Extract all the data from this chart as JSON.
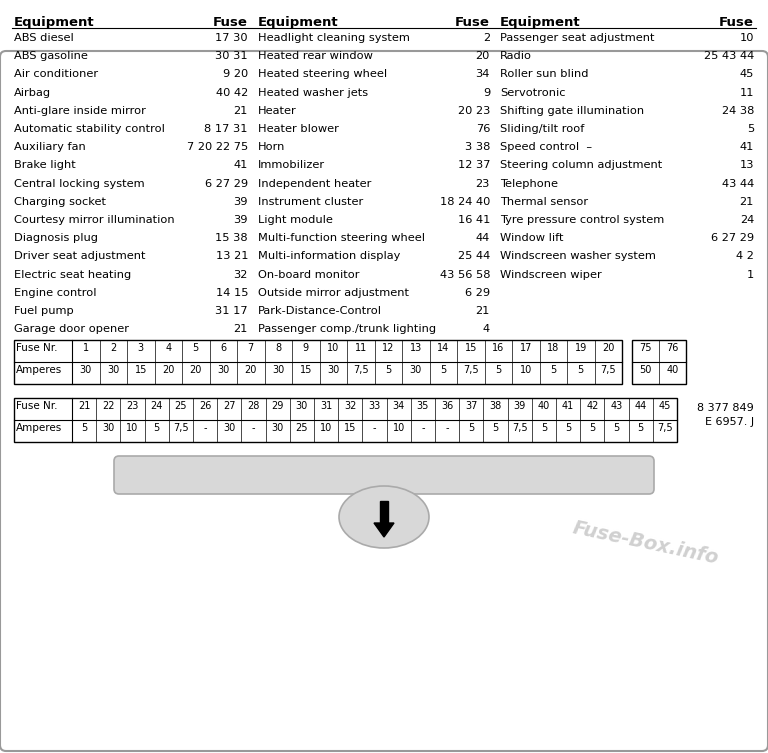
{
  "col1_items": [
    [
      "ABS diesel",
      "17 30"
    ],
    [
      "ABS gasoline",
      "30 31"
    ],
    [
      "Air conditioner",
      "9 20"
    ],
    [
      "Airbag",
      "40 42"
    ],
    [
      "Anti-glare inside mirror",
      "21"
    ],
    [
      "Automatic stability control",
      "8 17 31"
    ],
    [
      "Auxiliary fan",
      "7 20 22 75"
    ],
    [
      "Brake light",
      "41"
    ],
    [
      "Central locking system",
      "6 27 29"
    ],
    [
      "Charging socket",
      "39"
    ],
    [
      "Courtesy mirror illumination",
      "39"
    ],
    [
      "Diagnosis plug",
      "15 38"
    ],
    [
      "Driver seat adjustment",
      "13 21"
    ],
    [
      "Electric seat heating",
      "32"
    ],
    [
      "Engine control",
      "14 15"
    ],
    [
      "Fuel pump",
      "31 17"
    ],
    [
      "Garage door opener",
      "21"
    ]
  ],
  "col2_items": [
    [
      "Headlight cleaning system",
      "2"
    ],
    [
      "Heated rear window",
      "20"
    ],
    [
      "Heated steering wheel",
      "34"
    ],
    [
      "Heated washer jets",
      "9"
    ],
    [
      "Heater",
      "20 23"
    ],
    [
      "Heater blower",
      "76"
    ],
    [
      "Horn",
      "3 38"
    ],
    [
      "Immobilizer",
      "12 37"
    ],
    [
      "Independent heater",
      "23"
    ],
    [
      "Instrument cluster",
      "18 24 40"
    ],
    [
      "Light module",
      "16 41"
    ],
    [
      "Multi-function steering wheel",
      "44"
    ],
    [
      "Multi-information display",
      "25 44"
    ],
    [
      "On-board monitor",
      "43 56 58"
    ],
    [
      "Outside mirror adjustment",
      "6 29"
    ],
    [
      "Park-Distance-Control",
      "21"
    ],
    [
      "Passenger comp./trunk lighting",
      "4"
    ]
  ],
  "col3_items": [
    [
      "Passenger seat adjustment",
      "10"
    ],
    [
      "Radio",
      "25 43 44"
    ],
    [
      "Roller sun blind",
      "45"
    ],
    [
      "Servotronic",
      "11"
    ],
    [
      "Shifting gate illumination",
      "24 38"
    ],
    [
      "Sliding/tilt roof",
      "5"
    ],
    [
      "Speed control  –",
      "41"
    ],
    [
      "Steering column adjustment",
      "13"
    ],
    [
      "Telephone",
      "43 44"
    ],
    [
      "Thermal sensor",
      "21"
    ],
    [
      "Tyre pressure control system",
      "24"
    ],
    [
      "Window lift",
      "6 27 29"
    ],
    [
      "Windscreen washer system",
      "4 2"
    ],
    [
      "Windscreen wiper",
      "1"
    ]
  ],
  "table1_fuse_nr": [
    "1",
    "2",
    "3",
    "4",
    "5",
    "6",
    "7",
    "8",
    "9",
    "10",
    "11",
    "12",
    "13",
    "14",
    "15",
    "16",
    "17",
    "18",
    "19",
    "20"
  ],
  "table1_amperes": [
    "30",
    "30",
    "15",
    "20",
    "20",
    "30",
    "20",
    "30",
    "15",
    "30",
    "7,5",
    "5",
    "30",
    "5",
    "7,5",
    "5",
    "10",
    "5",
    "5",
    "7,5"
  ],
  "table2_fuse_nr": [
    "21",
    "22",
    "23",
    "24",
    "25",
    "26",
    "27",
    "28",
    "29",
    "30",
    "31",
    "32",
    "33",
    "34",
    "35",
    "36",
    "37",
    "38",
    "39",
    "40",
    "41",
    "42",
    "43",
    "44",
    "45"
  ],
  "table2_amperes": [
    "5",
    "30",
    "10",
    "5",
    "7,5",
    "-",
    "30",
    "-",
    "30",
    "25",
    "10",
    "15",
    "-",
    "10",
    "-",
    "-",
    "5",
    "5",
    "7,5",
    "5",
    "5",
    "5",
    "5",
    "5",
    "7,5"
  ],
  "extra_fuse_nr": [
    "75",
    "76"
  ],
  "extra_amperes": [
    "50",
    "40"
  ],
  "part1": "8 377 849",
  "part2": "E 6957. J",
  "watermark": "Fuse-Box.info"
}
